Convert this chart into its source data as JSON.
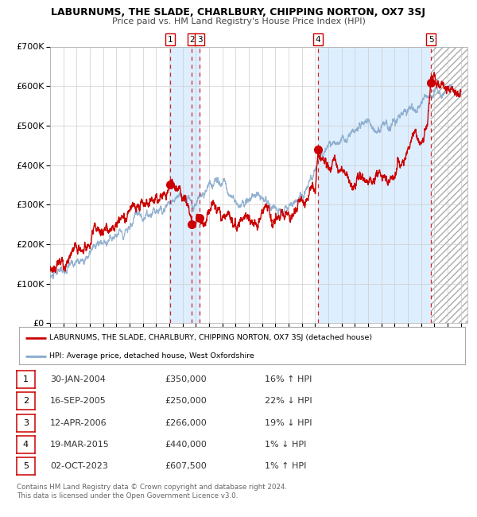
{
  "title": "LABURNUMS, THE SLADE, CHARLBURY, CHIPPING NORTON, OX7 3SJ",
  "subtitle": "Price paid vs. HM Land Registry's House Price Index (HPI)",
  "ylim": [
    0,
    700000
  ],
  "xlim_start": 1995.0,
  "xlim_end": 2026.5,
  "yticks": [
    0,
    100000,
    200000,
    300000,
    400000,
    500000,
    600000,
    700000
  ],
  "ytick_labels": [
    "£0",
    "£100K",
    "£200K",
    "£300K",
    "£400K",
    "£500K",
    "£600K",
    "£700K"
  ],
  "xticks": [
    1995,
    1996,
    1997,
    1998,
    1999,
    2000,
    2001,
    2002,
    2003,
    2004,
    2005,
    2006,
    2007,
    2008,
    2009,
    2010,
    2011,
    2012,
    2013,
    2014,
    2015,
    2016,
    2017,
    2018,
    2019,
    2020,
    2021,
    2022,
    2023,
    2024,
    2025,
    2026
  ],
  "sale_dates": [
    2004.08,
    2005.71,
    2006.28,
    2015.21,
    2023.75
  ],
  "sale_prices": [
    350000,
    250000,
    266000,
    440000,
    607500
  ],
  "sale_labels": [
    "1",
    "2",
    "3",
    "4",
    "5"
  ],
  "sale_color": "#cc0000",
  "hpi_color": "#88aacc",
  "property_line_color": "#cc0000",
  "vline_color": "#cc0000",
  "shaded_region_color": "#ddeeff",
  "legend_property": "LABURNUMS, THE SLADE, CHARLBURY, CHIPPING NORTON, OX7 3SJ (detached house)",
  "legend_hpi": "HPI: Average price, detached house, West Oxfordshire",
  "table_rows": [
    [
      "1",
      "30-JAN-2004",
      "£350,000",
      "16% ↑ HPI"
    ],
    [
      "2",
      "16-SEP-2005",
      "£250,000",
      "22% ↓ HPI"
    ],
    [
      "3",
      "12-APR-2006",
      "£266,000",
      "19% ↓ HPI"
    ],
    [
      "4",
      "19-MAR-2015",
      "£440,000",
      "1% ↓ HPI"
    ],
    [
      "5",
      "02-OCT-2023",
      "£607,500",
      "1% ↑ HPI"
    ]
  ],
  "footnote": "Contains HM Land Registry data © Crown copyright and database right 2024.\nThis data is licensed under the Open Government Licence v3.0.",
  "background_color": "#ffffff",
  "grid_color": "#cccccc"
}
